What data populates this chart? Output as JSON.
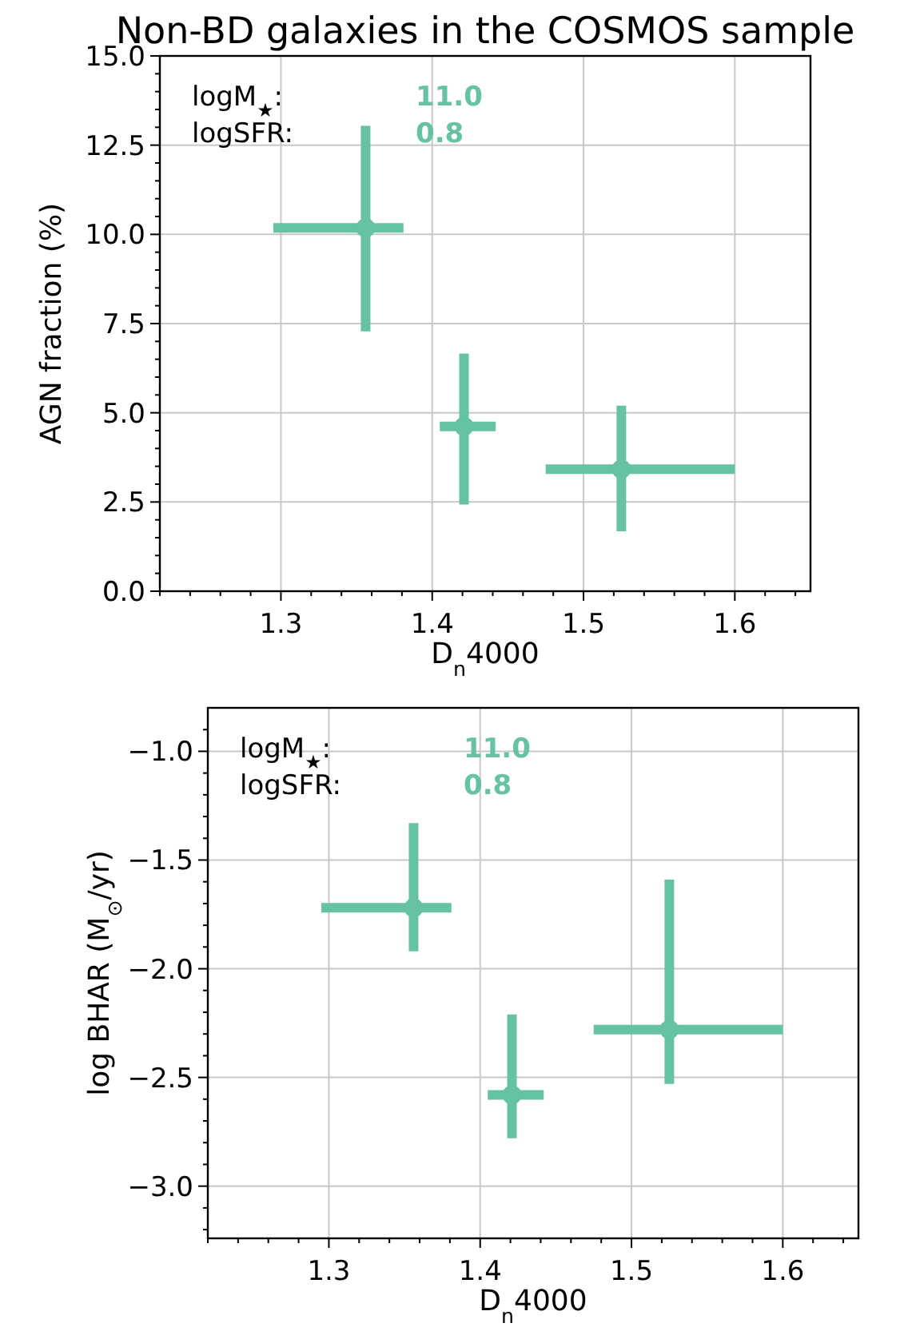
{
  "chart_data": [
    {
      "type": "scatter",
      "title": "Non-BD galaxies in the COSMOS sample",
      "xlabel": "D$_{n}$4000",
      "ylabel": "AGN fraction (%)",
      "series": [
        {
          "color": "#66c2a5",
          "x": [
            1.356,
            1.421,
            1.525
          ],
          "values": [
            10.18,
            4.62,
            3.42
          ],
          "xerrors": [
            [
              1.295,
              1.381
            ],
            [
              1.405,
              1.442
            ],
            [
              1.475,
              1.6
            ]
          ],
          "errors": [
            [
              7.28,
              13.04
            ],
            [
              2.43,
              6.66
            ],
            [
              1.68,
              5.2
            ]
          ]
        }
      ],
      "annotations": [
        "logM$_{★}$:",
        "11.0",
        "logSFR:",
        "0.8"
      ],
      "xlim": [
        1.22,
        1.65
      ],
      "xticks": [
        {
          "value": 1.22,
          "label": null
        },
        {
          "value": 1.24,
          "label": null
        },
        {
          "value": 1.26,
          "label": null
        },
        {
          "value": 1.28,
          "label": null
        },
        {
          "value": 1.3,
          "label": "1.3"
        },
        {
          "value": 1.32,
          "label": null
        },
        {
          "value": 1.34,
          "label": null
        },
        {
          "value": 1.36,
          "label": null
        },
        {
          "value": 1.38,
          "label": null
        },
        {
          "value": 1.4,
          "label": "1.4"
        },
        {
          "value": 1.42,
          "label": null
        },
        {
          "value": 1.44,
          "label": null
        },
        {
          "value": 1.46,
          "label": null
        },
        {
          "value": 1.48,
          "label": null
        },
        {
          "value": 1.5,
          "label": "1.5"
        },
        {
          "value": 1.52,
          "label": null
        },
        {
          "value": 1.54,
          "label": null
        },
        {
          "value": 1.56,
          "label": null
        },
        {
          "value": 1.58,
          "label": null
        },
        {
          "value": 1.6,
          "label": "1.6"
        },
        {
          "value": 1.62,
          "label": null
        },
        {
          "value": 1.64,
          "label": null
        }
      ],
      "ylim": [
        0,
        15
      ],
      "yticks": [
        {
          "value": 0,
          "label": "0.0"
        },
        {
          "value": 0.5,
          "label": null
        },
        {
          "value": 1,
          "label": null
        },
        {
          "value": 1.5,
          "label": null
        },
        {
          "value": 2,
          "label": null
        },
        {
          "value": 2.5,
          "label": "2.5"
        },
        {
          "value": 3,
          "label": null
        },
        {
          "value": 3.5,
          "label": null
        },
        {
          "value": 4,
          "label": null
        },
        {
          "value": 4.5,
          "label": null
        },
        {
          "value": 5,
          "label": "5.0"
        },
        {
          "value": 5.5,
          "label": null
        },
        {
          "value": 6,
          "label": null
        },
        {
          "value": 6.5,
          "label": null
        },
        {
          "value": 7,
          "label": null
        },
        {
          "value": 7.5,
          "label": "7.5"
        },
        {
          "value": 8,
          "label": null
        },
        {
          "value": 8.5,
          "label": null
        },
        {
          "value": 9,
          "label": null
        },
        {
          "value": 9.5,
          "label": null
        },
        {
          "value": 10,
          "label": "10.0"
        },
        {
          "value": 10.5,
          "label": null
        },
        {
          "value": 11,
          "label": null
        },
        {
          "value": 11.5,
          "label": null
        },
        {
          "value": 12,
          "label": null
        },
        {
          "value": 12.5,
          "label": "12.5"
        },
        {
          "value": 13,
          "label": null
        },
        {
          "value": 13.5,
          "label": null
        },
        {
          "value": 14,
          "label": null
        },
        {
          "value": 14.5,
          "label": null
        },
        {
          "value": 15,
          "label": "15.0"
        }
      ],
      "grid": true,
      "marker": "circle"
    },
    {
      "type": "scatter",
      "xlabel": "D$_{n}$4000",
      "ylabel": "log BHAR (M$_{⊙}$/yr)",
      "series": [
        {
          "color": "#66c2a5",
          "x": [
            1.356,
            1.421,
            1.525
          ],
          "values": [
            -1.72,
            -2.58,
            -2.28
          ],
          "xerrors": [
            [
              1.295,
              1.381
            ],
            [
              1.405,
              1.442
            ],
            [
              1.475,
              1.6
            ]
          ],
          "errors": [
            [
              -1.92,
              -1.33
            ],
            [
              -2.78,
              -2.21
            ],
            [
              -2.53,
              -1.59
            ]
          ]
        }
      ],
      "annotations": [
        "logM$_{★}$:",
        "11.0",
        "logSFR:",
        "0.8"
      ],
      "xlim": [
        1.22,
        1.65
      ],
      "xticks": [
        {
          "value": 1.22,
          "label": null
        },
        {
          "value": 1.24,
          "label": null
        },
        {
          "value": 1.26,
          "label": null
        },
        {
          "value": 1.28,
          "label": null
        },
        {
          "value": 1.3,
          "label": "1.3"
        },
        {
          "value": 1.32,
          "label": null
        },
        {
          "value": 1.34,
          "label": null
        },
        {
          "value": 1.36,
          "label": null
        },
        {
          "value": 1.38,
          "label": null
        },
        {
          "value": 1.4,
          "label": "1.4"
        },
        {
          "value": 1.42,
          "label": null
        },
        {
          "value": 1.44,
          "label": null
        },
        {
          "value": 1.46,
          "label": null
        },
        {
          "value": 1.48,
          "label": null
        },
        {
          "value": 1.5,
          "label": "1.5"
        },
        {
          "value": 1.52,
          "label": null
        },
        {
          "value": 1.54,
          "label": null
        },
        {
          "value": 1.56,
          "label": null
        },
        {
          "value": 1.58,
          "label": null
        },
        {
          "value": 1.6,
          "label": "1.6"
        },
        {
          "value": 1.62,
          "label": null
        },
        {
          "value": 1.64,
          "label": null
        }
      ],
      "ylim": [
        -3.24,
        -0.8
      ],
      "yticks": [
        {
          "value": -3.2,
          "label": null
        },
        {
          "value": -3.1,
          "label": null
        },
        {
          "value": -3.0,
          "label": "−3.0"
        },
        {
          "value": -2.9,
          "label": null
        },
        {
          "value": -2.8,
          "label": null
        },
        {
          "value": -2.7,
          "label": null
        },
        {
          "value": -2.6,
          "label": null
        },
        {
          "value": -2.5,
          "label": "−2.5"
        },
        {
          "value": -2.4,
          "label": null
        },
        {
          "value": -2.3,
          "label": null
        },
        {
          "value": -2.2,
          "label": null
        },
        {
          "value": -2.1,
          "label": null
        },
        {
          "value": -2.0,
          "label": "−2.0"
        },
        {
          "value": -1.9,
          "label": null
        },
        {
          "value": -1.8,
          "label": null
        },
        {
          "value": -1.7,
          "label": null
        },
        {
          "value": -1.6,
          "label": null
        },
        {
          "value": -1.5,
          "label": "−1.5"
        },
        {
          "value": -1.4,
          "label": null
        },
        {
          "value": -1.3,
          "label": null
        },
        {
          "value": -1.2,
          "label": null
        },
        {
          "value": -1.1,
          "label": null
        },
        {
          "value": -1.0,
          "label": "−1.0"
        },
        {
          "value": -0.9,
          "label": null
        }
      ],
      "grid": true,
      "marker": "circle"
    }
  ]
}
